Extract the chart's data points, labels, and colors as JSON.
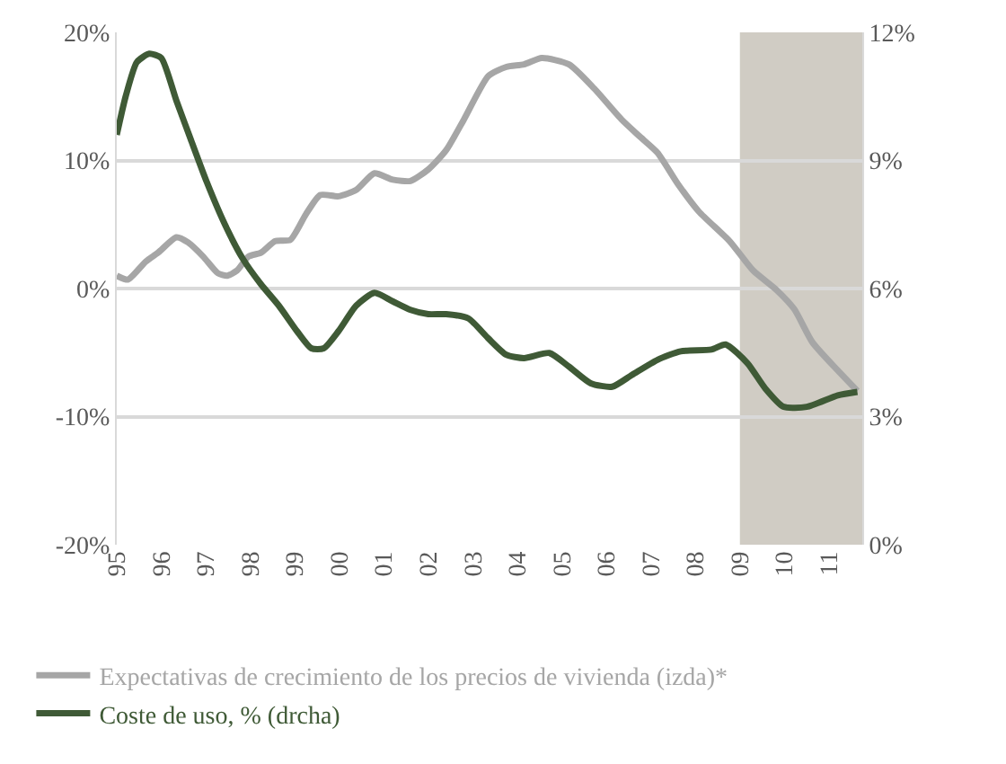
{
  "chart_data": {
    "type": "line",
    "xlim": [
      1995,
      2011.75
    ],
    "xticks": [
      {
        "value": 1995,
        "label": "95"
      },
      {
        "value": 1996,
        "label": "96"
      },
      {
        "value": 1997,
        "label": "97"
      },
      {
        "value": 1998,
        "label": "98"
      },
      {
        "value": 1999,
        "label": "99"
      },
      {
        "value": 2000,
        "label": "00"
      },
      {
        "value": 2001,
        "label": "01"
      },
      {
        "value": 2002,
        "label": "02"
      },
      {
        "value": 2003,
        "label": "03"
      },
      {
        "value": 2004,
        "label": "04"
      },
      {
        "value": 2005,
        "label": "05"
      },
      {
        "value": 2006,
        "label": "06"
      },
      {
        "value": 2007,
        "label": "07"
      },
      {
        "value": 2008,
        "label": "08"
      },
      {
        "value": 2009,
        "label": "09"
      },
      {
        "value": 2010,
        "label": "10"
      },
      {
        "value": 2011,
        "label": "11"
      }
    ],
    "ylim": [
      -20,
      20
    ],
    "yticks": [
      {
        "value": -20,
        "label": "-20%"
      },
      {
        "value": -10,
        "label": "-10%"
      },
      {
        "value": 0,
        "label": "0%"
      },
      {
        "value": 10,
        "label": "10%"
      },
      {
        "value": 20,
        "label": "20%"
      }
    ],
    "y2lim": [
      0,
      12
    ],
    "y2ticks": [
      {
        "value": 0,
        "label": "0%"
      },
      {
        "value": 3,
        "label": "3%"
      },
      {
        "value": 6,
        "label": "6%"
      },
      {
        "value": 9,
        "label": "9%"
      },
      {
        "value": 12,
        "label": "12%"
      }
    ],
    "series": [
      {
        "name": "Expectativas de crecimiento de los precios de vivienda (izda)*",
        "color": "#a6a6a6",
        "x": [
          1995.0,
          1995.25,
          1995.65,
          1995.93,
          1996.34,
          1996.6,
          1996.94,
          1997.27,
          1997.48,
          1997.7,
          1997.96,
          1998.24,
          1998.56,
          1998.9,
          1999.25,
          1999.57,
          1999.98,
          2000.38,
          2000.79,
          2001.2,
          2001.6,
          2002.0,
          2002.4,
          2002.8,
          2003.35,
          2003.75,
          2004.15,
          2004.55,
          2005.16,
          2005.73,
          2006.34,
          2006.74,
          2007.15,
          2007.6,
          2008.08,
          2008.77,
          2009.3,
          2009.82,
          2010.22,
          2010.63,
          2011.2,
          2011.64
        ],
        "values": [
          1.0,
          0.7,
          2.1,
          2.8,
          4.0,
          3.6,
          2.5,
          1.2,
          1.0,
          1.4,
          2.5,
          2.8,
          3.7,
          3.8,
          5.8,
          7.3,
          7.2,
          7.7,
          9.0,
          8.5,
          8.4,
          9.3,
          10.8,
          13.2,
          16.6,
          17.3,
          17.5,
          18.0,
          17.5,
          15.6,
          13.2,
          11.9,
          10.6,
          8.2,
          6.0,
          3.7,
          1.4,
          -0.1,
          -1.6,
          -4.2,
          -6.4,
          -8.0
        ]
      },
      {
        "name": "Coste de uso, % (drcha)",
        "color": "#3f5a36",
        "axis": "y2",
        "x": [
          1995.0,
          1995.2,
          1995.45,
          1995.73,
          1996.0,
          1996.34,
          1996.66,
          1997.02,
          1997.43,
          1997.83,
          1998.24,
          1998.64,
          1999.05,
          1999.37,
          1999.65,
          1999.98,
          2000.38,
          2000.79,
          2001.2,
          2001.6,
          2002.0,
          2002.4,
          2002.9,
          2003.34,
          2003.75,
          2004.15,
          2004.72,
          2005.16,
          2005.65,
          2006.13,
          2006.58,
          2007.15,
          2007.67,
          2008.36,
          2008.68,
          2009.17,
          2009.57,
          2009.98,
          2010.5,
          2011.2,
          2011.64
        ],
        "values": [
          9.6,
          10.5,
          11.3,
          11.5,
          11.4,
          10.4,
          9.5,
          8.5,
          7.5,
          6.7,
          6.1,
          5.6,
          5.0,
          4.6,
          4.6,
          5.0,
          5.6,
          5.9,
          5.7,
          5.5,
          5.4,
          5.4,
          5.3,
          4.84,
          4.45,
          4.37,
          4.49,
          4.17,
          3.78,
          3.7,
          3.98,
          4.33,
          4.53,
          4.57,
          4.69,
          4.25,
          3.66,
          3.23,
          3.23,
          3.5,
          3.58
        ]
      }
    ],
    "bands": [
      {
        "axis": "x",
        "from": 2009,
        "to": 2011.75,
        "color": "#d0ccc4"
      }
    ],
    "grid": "y",
    "legend": "bottom left",
    "marker": "none",
    "line_style": "solid"
  }
}
